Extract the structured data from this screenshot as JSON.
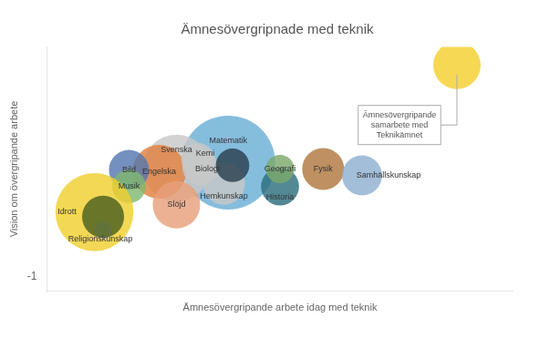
{
  "chart_data": {
    "type": "bubble",
    "title": "Ämnesövergripnade med teknik",
    "xlabel": "Ämnesövergripande arbete idag med teknik",
    "ylabel": "Vision om övergripande arbete",
    "labels": [
      "Matematik",
      "Svenska",
      "Engelska",
      "Bild",
      "Kemi",
      "Biologi",
      "Historia",
      "Geografi",
      "Fysik",
      "Samhällskunskap",
      "Hemkunskap",
      "Slöjd",
      "Musik",
      "Idrott",
      "Religionskunskap",
      null,
      null,
      null
    ],
    "x": [
      4.2,
      3.0,
      2.6,
      1.9,
      3.5,
      3.55,
      5.4,
      5.4,
      6.4,
      7.3,
      4.1,
      3.0,
      1.9,
      1.1,
      1.3,
      9.5,
      4.3,
      1.3
    ],
    "y": [
      5.2,
      4.9,
      4.7,
      4.8,
      5.35,
      4.95,
      3.9,
      4.85,
      4.85,
      4.5,
      4.05,
      2.9,
      3.9,
      2.5,
      1.5,
      10.5,
      5.05,
      2.25
    ],
    "sizes": [
      5500,
      2800,
      1800,
      1000,
      700,
      800,
      900,
      500,
      1100,
      1000,
      1100,
      1400,
      700,
      3800,
      200,
      1400,
      700,
      1100
    ],
    "colors": [
      "#6aaed6",
      "#c8c8c8",
      "#e08040",
      "#5578b0",
      "#c8c8c8",
      "#c8c8c8",
      "#2d6e7e",
      "#7caa6c",
      "#b07840",
      "#8fb0d0",
      "#c8c8c8",
      "#e8a07a",
      "#80b870",
      "#f0d030",
      "#c8c8c8",
      "#f5d030",
      "#2b3f4e",
      "#4a6020"
    ],
    "annotations": [
      {
        "text": "Ämnesövergripande\nsamarbete med\nTeknikämnet",
        "x": 9.5,
        "y": 10.0
      }
    ],
    "xlim": [
      0.0,
      10.8
    ],
    "ylim": [
      -1.8,
      11.5
    ],
    "xticks": [],
    "yticks": [
      -1
    ],
    "grid": false,
    "tick_labels": "y"
  }
}
